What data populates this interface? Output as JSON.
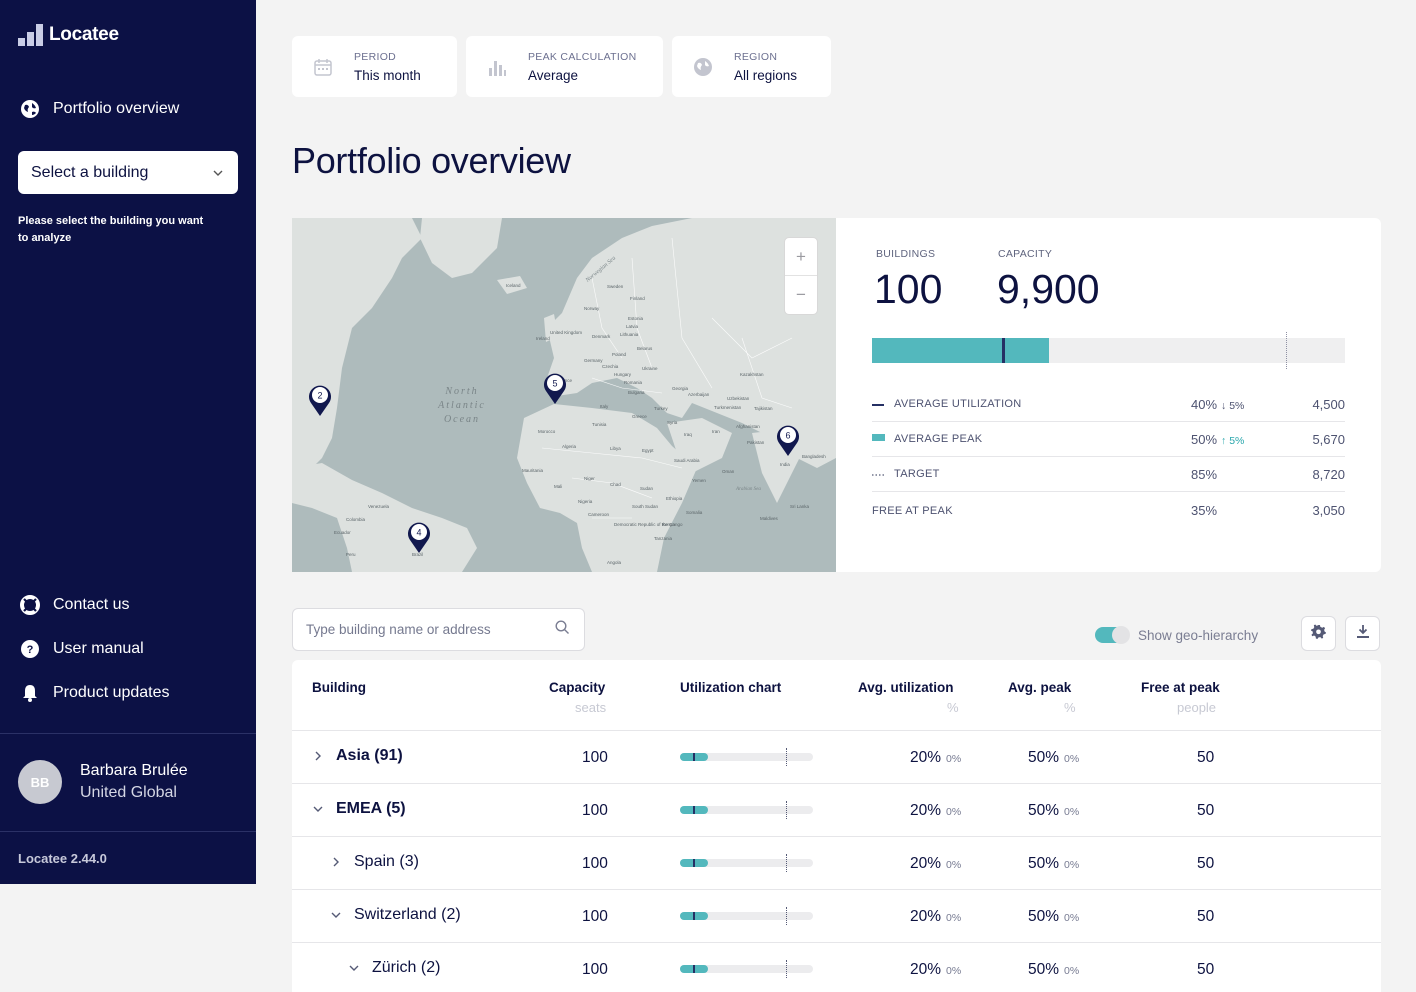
{
  "app": {
    "name": "Locatee",
    "version": "Locatee 2.44.0"
  },
  "sidebar": {
    "nav_top": {
      "label": "Portfolio overview",
      "icon": "globe-icon"
    },
    "select_building": {
      "label": "Select a building",
      "help": "Please select the building you want to analyze"
    },
    "nav_bottom": [
      {
        "label": "Contact us",
        "icon": "lifebuoy-icon"
      },
      {
        "label": "User manual",
        "icon": "help-circle-icon"
      },
      {
        "label": "Product updates",
        "icon": "bell-icon"
      }
    ],
    "user": {
      "initials": "BB",
      "name": "Barbara Brulée",
      "org": "United Global"
    }
  },
  "filters": [
    {
      "label": "PERIOD",
      "value": "This month",
      "icon": "calendar-icon"
    },
    {
      "label": "PEAK CALCULATION",
      "value": "Average",
      "icon": "bar-chart-icon"
    },
    {
      "label": "REGION",
      "value": "All regions",
      "icon": "globe-icon"
    }
  ],
  "page_title": "Portfolio overview",
  "map": {
    "labels": {
      "ocean": [
        "North",
        "Atlantic",
        "Ocean"
      ],
      "sea": "Norwegian Sea",
      "arabian_sea": "Arabian Sea",
      "places": [
        "Iceland",
        "Sweden",
        "Finland",
        "Norway",
        "Poland",
        "Belarus",
        "Germany",
        "Ukraine",
        "Romania",
        "Turkey",
        "Kazakhstan",
        "Uzbekistan",
        "Tajikistan",
        "Turkmenistan",
        "Afghanistan",
        "Iran",
        "Iraq",
        "Syria",
        "Saudi Arabia",
        "Egypt",
        "Libya",
        "Algeria",
        "Morocco",
        "Mali",
        "Niger",
        "Chad",
        "Sudan",
        "Yemen",
        "Ethiopia",
        "Somalia",
        "Kenya",
        "Nigeria",
        "Cameroon",
        "Tanzania",
        "Angola",
        "Mauritania",
        "Venezuela",
        "Colombia",
        "Ecuador",
        "Peru",
        "Brazil",
        "India",
        "Bangladesh",
        "Sri Lanka",
        "Maldives",
        "Pakistan",
        "Oman",
        "South Sudan",
        "Democratic Republic of the Congo",
        "Tunisia",
        "Greece",
        "Italy",
        "France",
        "United Kingdom",
        "Ireland",
        "Denmark",
        "Lithuania",
        "Latvia",
        "Estonia",
        "Czechia",
        "Hungary",
        "Bulgaria",
        "Georgia",
        "Azerbaijan"
      ]
    },
    "pins": [
      {
        "count": "2"
      },
      {
        "count": "5"
      },
      {
        "count": "6"
      },
      {
        "count": "4"
      }
    ],
    "zoom_in": "+",
    "zoom_out": "−",
    "colors": {
      "water": "#aebbbc",
      "land": "#dde1df",
      "pin": "#11184e"
    }
  },
  "summary": {
    "buildings": {
      "label": "BUILDINGS",
      "value": "100"
    },
    "capacity": {
      "label": "CAPACITY",
      "value": "9,900"
    },
    "bar": {
      "peak_fraction": 0.375,
      "utilization_fraction": 0.275,
      "target_fraction": 0.875
    },
    "legend": [
      {
        "label": "AVERAGE UTILIZATION",
        "pct": "40%",
        "trend": "↓ 5%",
        "trend_color": "#4d5270",
        "value": "4,500",
        "key": "line"
      },
      {
        "label": "AVERAGE PEAK",
        "pct": "50%",
        "trend": "↑ 5%",
        "trend_color": "#2aa7ad",
        "value": "5,670",
        "key": "fill"
      },
      {
        "label": "TARGET",
        "pct": "85%",
        "trend": "",
        "value": "8,720",
        "key": "dotted"
      },
      {
        "label": "FREE AT PEAK",
        "pct": "35%",
        "trend": "",
        "value": "3,050",
        "key": "none"
      }
    ],
    "colors": {
      "accent": "#53b8bd",
      "dark": "#253064"
    }
  },
  "toolbar": {
    "search_placeholder": "Type building name or address",
    "toggle_label": "Show geo-hierarchy",
    "toggle_on": true
  },
  "table": {
    "columns": [
      {
        "label": "Building",
        "sub": ""
      },
      {
        "label": "Capacity",
        "sub": "seats"
      },
      {
        "label": "Utilization chart",
        "sub": ""
      },
      {
        "label": "Avg. utilization",
        "sub": "%"
      },
      {
        "label": "Avg. peak",
        "sub": "%"
      },
      {
        "label": "Free at peak",
        "sub": "people"
      }
    ],
    "rows": [
      {
        "name": "Asia (91)",
        "expanded": false,
        "level": 0,
        "capacity": "100",
        "util": "20%",
        "util_delta": "0%",
        "peak": "50%",
        "peak_delta": "0%",
        "free": "50",
        "bar_fill": 0.21,
        "bar_util": 0.1,
        "bar_target": 0.8
      },
      {
        "name": "EMEA (5)",
        "expanded": true,
        "level": 0,
        "capacity": "100",
        "util": "20%",
        "util_delta": "0%",
        "peak": "50%",
        "peak_delta": "0%",
        "free": "50",
        "bar_fill": 0.21,
        "bar_util": 0.1,
        "bar_target": 0.8
      },
      {
        "name": "Spain (3)",
        "expanded": false,
        "level": 1,
        "capacity": "100",
        "util": "20%",
        "util_delta": "0%",
        "peak": "50%",
        "peak_delta": "0%",
        "free": "50",
        "bar_fill": 0.21,
        "bar_util": 0.1,
        "bar_target": 0.8
      },
      {
        "name": "Switzerland (2)",
        "expanded": true,
        "level": 1,
        "capacity": "100",
        "util": "20%",
        "util_delta": "0%",
        "peak": "50%",
        "peak_delta": "0%",
        "free": "50",
        "bar_fill": 0.21,
        "bar_util": 0.1,
        "bar_target": 0.8
      },
      {
        "name": "Zürich (2)",
        "expanded": true,
        "level": 2,
        "capacity": "100",
        "util": "20%",
        "util_delta": "0%",
        "peak": "50%",
        "peak_delta": "0%",
        "free": "50",
        "bar_fill": 0.21,
        "bar_util": 0.1,
        "bar_target": 0.8
      }
    ]
  }
}
